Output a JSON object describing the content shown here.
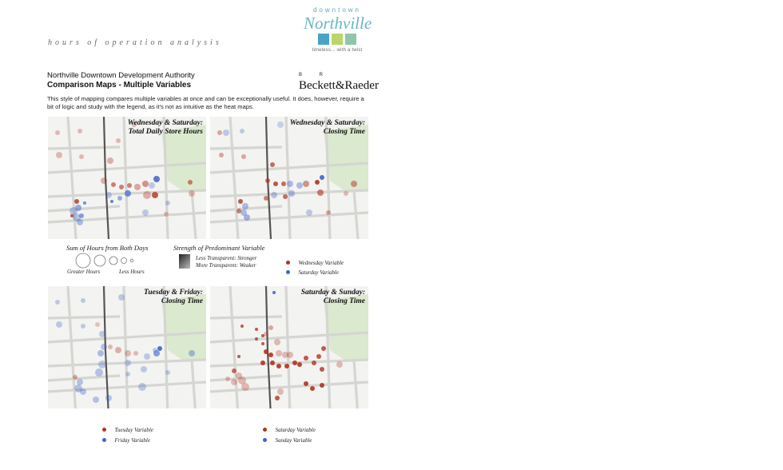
{
  "header": {
    "kicker": "hours of operation analysis",
    "org": "Northville Downtown Development Authority",
    "subtitle": "Comparison Maps - Multiple Variables",
    "intro": "This style of mapping compares multiple variables at once and can be exceptionally useful. It does, however, require a bit of logic and study with the legend, as it's not as intuitive as the heat maps."
  },
  "logo": {
    "downtown": "downtown",
    "name": "Northville",
    "tagline": "timeless... with a twist",
    "tile_colors": [
      "#4aa3c6",
      "#b9d66a",
      "#8fc6a8"
    ]
  },
  "firm": {
    "letters": "B R",
    "name": "Beckett&Raeder"
  },
  "colors": {
    "red": "#b0321f",
    "blue": "#3f63c8",
    "map_bg": "#f3f3f1",
    "park": "#dbe9cf",
    "rail": "#555555"
  },
  "maps": [
    {
      "title_line1": "Wednesday & Saturday:",
      "title_line2": "Total Daily Store Hours"
    },
    {
      "title_line1": "Wednesday & Saturday:",
      "title_line2": "Closing Time"
    },
    {
      "title_line1": "Tuesday & Friday:",
      "title_line2": "Closing Time"
    },
    {
      "title_line1": "Saturday & Sunday:",
      "title_line2": "Closing Time"
    }
  ],
  "legend_size": {
    "title": "Sum of Hours from Both Days",
    "greater": "Greater Hours",
    "less": "Less Hours"
  },
  "legend_strength": {
    "title": "Strength of Predominant Variable",
    "stronger": "Less Transparent: Stronger",
    "weaker": "More Transparent: Weaker"
  },
  "legend_top_vars": {
    "red": "Wednesday Variable",
    "blue": "Saturday Variable"
  },
  "legend_bottom_left": {
    "red": "Tuesday Variable",
    "blue": "Friday Variable"
  },
  "legend_bottom_right": {
    "red": "Saturday Variable",
    "blue": "Sunday Variable"
  }
}
